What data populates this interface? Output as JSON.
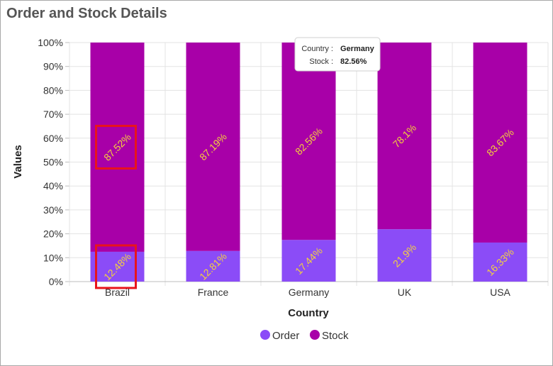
{
  "title": "Order and Stock Details",
  "chart_data": {
    "type": "bar",
    "stacked": "100%",
    "categories": [
      "Brazil",
      "France",
      "Germany",
      "UK",
      "USA"
    ],
    "series": [
      {
        "name": "Order",
        "values": [
          12.48,
          12.81,
          17.44,
          21.9,
          16.33
        ],
        "labels": [
          "12.48%",
          "12.81%",
          "17.44%",
          "21.9%",
          "16.33%"
        ],
        "color": "#8b4cf7"
      },
      {
        "name": "Stock",
        "values": [
          87.52,
          87.19,
          82.56,
          78.1,
          83.67
        ],
        "labels": [
          "87.52%",
          "87.19%",
          "82.56%",
          "78.1%",
          "83.67%"
        ],
        "color": "#a800a8"
      }
    ],
    "xlabel": "Country",
    "ylabel": "Values",
    "ylim": [
      0,
      100
    ],
    "yticks": [
      "0%",
      "10%",
      "20%",
      "30%",
      "40%",
      "50%",
      "60%",
      "70%",
      "80%",
      "90%",
      "100%"
    ],
    "grid": true,
    "legend_position": "bottom",
    "label_color": "#f4d03f",
    "highlight_color": "#e8141c",
    "highlighted_labels": [
      "Brazil-Stock",
      "Brazil-Order"
    ]
  },
  "tooltip": {
    "country_label": "Country :",
    "country_value": "Germany",
    "stock_label": "Stock :",
    "stock_value": "82.56%"
  }
}
